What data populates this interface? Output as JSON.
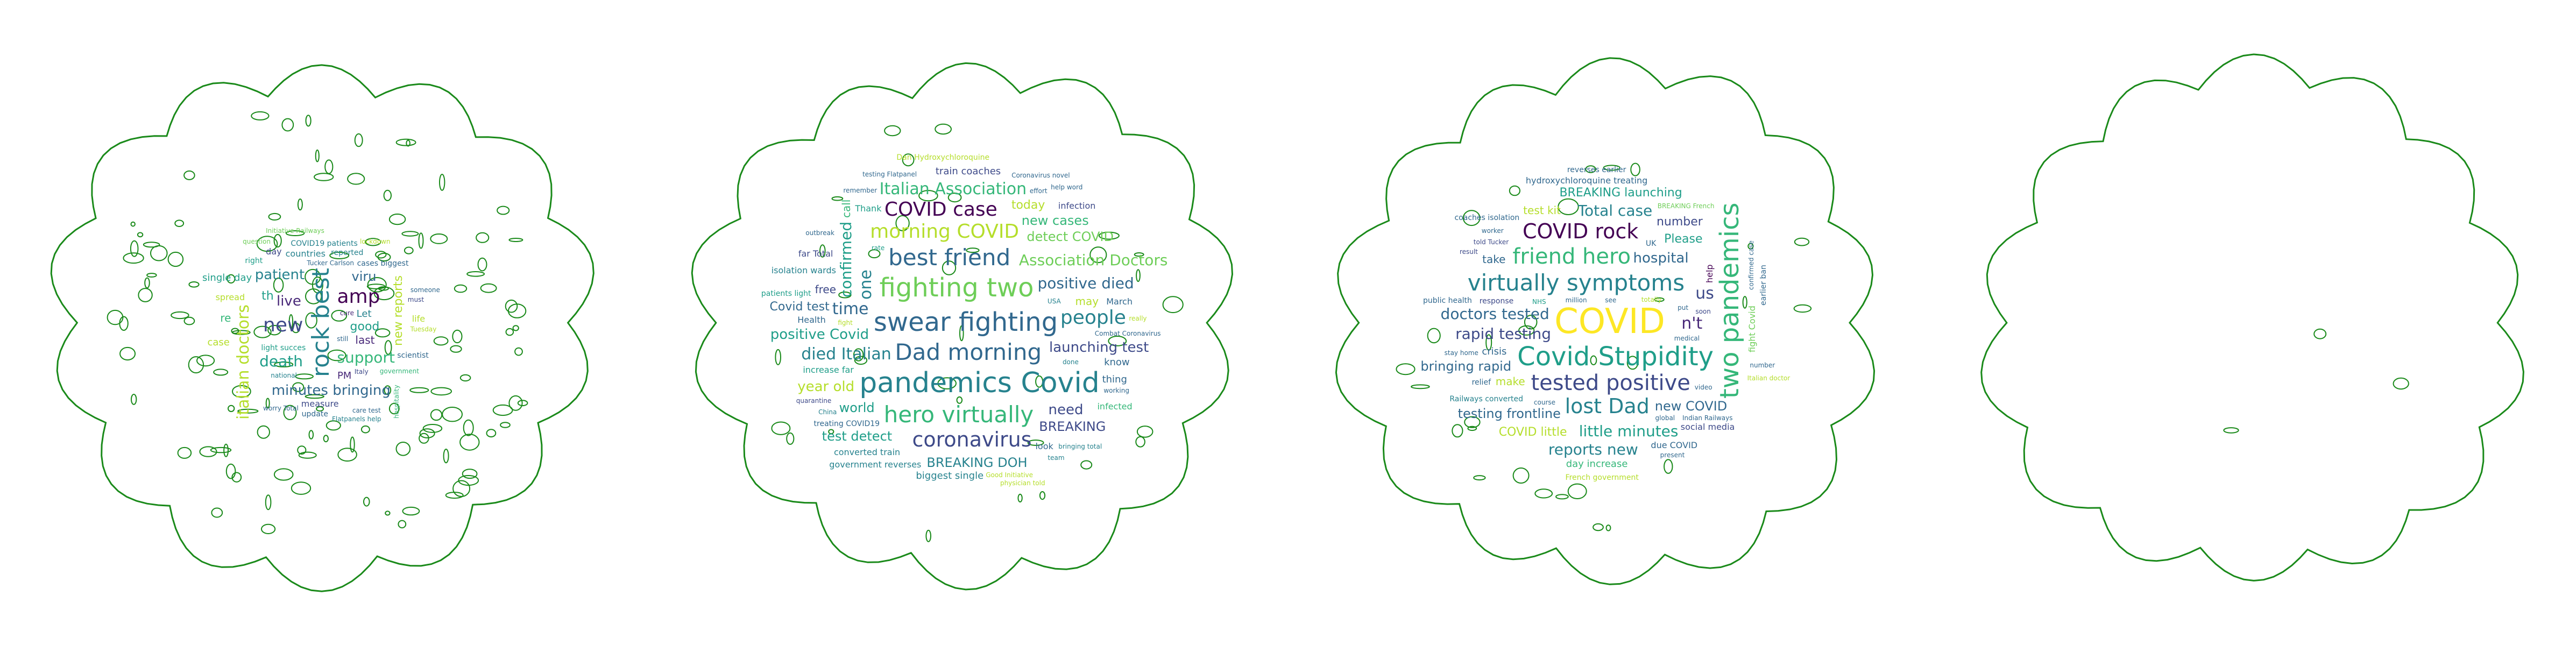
{
  "palette": {
    "outline": "#1a8a1a",
    "viridis": [
      "#440154",
      "#482878",
      "#3e4a89",
      "#31688e",
      "#26828e",
      "#1f9e89",
      "#35b779",
      "#6ece58",
      "#b5de2b",
      "#fde725"
    ]
  },
  "clouds": [
    {
      "words": [
        {
          "text": "rock best",
          "c": 4,
          "s": 44,
          "v": true
        },
        {
          "text": "amp",
          "c": 0,
          "s": 36
        },
        {
          "text": "new",
          "c": 2,
          "s": 36
        },
        {
          "text": "live",
          "c": 1,
          "s": 26
        },
        {
          "text": "minutes bringing",
          "c": 3,
          "s": 26
        },
        {
          "text": "good",
          "c": 5,
          "s": 22
        },
        {
          "text": "support",
          "c": 6,
          "s": 28
        },
        {
          "text": "death",
          "c": 5,
          "s": 28
        },
        {
          "text": "patient",
          "c": 4,
          "s": 26
        },
        {
          "text": "italian doctors",
          "c": 8,
          "s": 30,
          "v": true
        },
        {
          "text": "new reports",
          "c": 8,
          "s": 22,
          "v": true
        },
        {
          "text": "viru",
          "c": 3,
          "s": 24
        },
        {
          "text": "last",
          "c": 1,
          "s": 20
        },
        {
          "text": "th",
          "c": 5,
          "s": 22
        },
        {
          "text": "Let",
          "c": 4,
          "s": 18
        },
        {
          "text": "countries",
          "c": 4,
          "s": 16
        },
        {
          "text": "light succes",
          "c": 5,
          "s": 14
        },
        {
          "text": "COVID19 patients",
          "c": 4,
          "s": 14
        },
        {
          "text": "cases biggest",
          "c": 3,
          "s": 14
        },
        {
          "text": "Italy",
          "c": 2,
          "s": 12
        },
        {
          "text": "day",
          "c": 2,
          "s": 16
        },
        {
          "text": "measure",
          "c": 2,
          "s": 16
        },
        {
          "text": "single day",
          "c": 5,
          "s": 18
        },
        {
          "text": "PM",
          "c": 1,
          "s": 18
        },
        {
          "text": "Tucker Carlson",
          "c": 3,
          "s": 12
        },
        {
          "text": "government",
          "c": 6,
          "s": 12
        },
        {
          "text": "scientist",
          "c": 3,
          "s": 14
        },
        {
          "text": "national",
          "c": 4,
          "s": 12
        },
        {
          "text": "reported",
          "c": 4,
          "s": 14
        },
        {
          "text": "spread",
          "c": 8,
          "s": 16
        },
        {
          "text": "update",
          "c": 3,
          "s": 14
        },
        {
          "text": "life",
          "c": 8,
          "s": 16
        },
        {
          "text": "Initiative Railways",
          "c": 7,
          "s": 12
        },
        {
          "text": "care test",
          "c": 3,
          "s": 12
        },
        {
          "text": "case",
          "c": 8,
          "s": 18
        },
        {
          "text": "re",
          "c": 6,
          "s": 20
        },
        {
          "text": "must",
          "c": 2,
          "s": 12
        },
        {
          "text": "right",
          "c": 5,
          "s": 14
        },
        {
          "text": "still",
          "c": 3,
          "s": 12
        },
        {
          "text": "lockdown",
          "c": 8,
          "s": 12
        },
        {
          "text": "question",
          "c": 7,
          "s": 12
        },
        {
          "text": "Flatpanels help",
          "c": 4,
          "s": 12
        },
        {
          "text": "worry Total",
          "c": 3,
          "s": 12
        },
        {
          "text": "cure",
          "c": 1,
          "s": 12
        },
        {
          "text": "Tuesday",
          "c": 8,
          "s": 12
        },
        {
          "text": "someone",
          "c": 3,
          "s": 12
        },
        {
          "text": "hospitality",
          "c": 6,
          "s": 12,
          "v": true
        }
      ]
    },
    {
      "words": [
        {
          "text": "swear fighting",
          "c": 3,
          "s": 48
        },
        {
          "text": "Dad morning",
          "c": 3,
          "s": 42
        },
        {
          "text": "fighting two",
          "c": 7,
          "s": 48
        },
        {
          "text": "pandemics Covid",
          "c": 4,
          "s": 52
        },
        {
          "text": "best friend",
          "c": 3,
          "s": 42
        },
        {
          "text": "hero virtually",
          "c": 6,
          "s": 42
        },
        {
          "text": "morning COVID",
          "c": 8,
          "s": 36
        },
        {
          "text": "COVID case",
          "c": 0,
          "s": 36
        },
        {
          "text": "coronavirus",
          "c": 2,
          "s": 38
        },
        {
          "text": "Italian Association",
          "c": 6,
          "s": 30
        },
        {
          "text": "died Italian",
          "c": 4,
          "s": 30
        },
        {
          "text": "Association Doctors",
          "c": 7,
          "s": 28
        },
        {
          "text": "positive died",
          "c": 3,
          "s": 28
        },
        {
          "text": "launching test",
          "c": 2,
          "s": 26
        },
        {
          "text": "time",
          "c": 3,
          "s": 30
        },
        {
          "text": "people",
          "c": 4,
          "s": 36
        },
        {
          "text": "one",
          "c": 4,
          "s": 30,
          "v": true
        },
        {
          "text": "confirmed",
          "c": 5,
          "s": 28,
          "v": true
        },
        {
          "text": "positive Covid",
          "c": 5,
          "s": 26
        },
        {
          "text": "detect COVID",
          "c": 7,
          "s": 24
        },
        {
          "text": "new cases",
          "c": 6,
          "s": 24
        },
        {
          "text": "BREAKING DOH",
          "c": 4,
          "s": 24
        },
        {
          "text": "need",
          "c": 2,
          "s": 26
        },
        {
          "text": "BREAKING",
          "c": 2,
          "s": 24
        },
        {
          "text": "test detect",
          "c": 5,
          "s": 24
        },
        {
          "text": "world",
          "c": 5,
          "s": 24
        },
        {
          "text": "today",
          "c": 8,
          "s": 22
        },
        {
          "text": "year old",
          "c": 8,
          "s": 26
        },
        {
          "text": "may",
          "c": 8,
          "s": 20
        },
        {
          "text": "Covid test",
          "c": 3,
          "s": 22
        },
        {
          "text": "free",
          "c": 2,
          "s": 20
        },
        {
          "text": "know",
          "c": 3,
          "s": 18
        },
        {
          "text": "look",
          "c": 3,
          "s": 16
        },
        {
          "text": "train coaches",
          "c": 2,
          "s": 18
        },
        {
          "text": "biggest single",
          "c": 4,
          "s": 18
        },
        {
          "text": "thing",
          "c": 3,
          "s": 18
        },
        {
          "text": "converted train",
          "c": 4,
          "s": 16
        },
        {
          "text": "Thank",
          "c": 5,
          "s": 16
        },
        {
          "text": "March",
          "c": 3,
          "s": 16
        },
        {
          "text": "increase far",
          "c": 5,
          "s": 16
        },
        {
          "text": "Combat Coronavirus",
          "c": 3,
          "s": 12
        },
        {
          "text": "Dan Hydroxychloroquine",
          "c": 8,
          "s": 14
        },
        {
          "text": "isolation wards",
          "c": 4,
          "s": 16
        },
        {
          "text": "treating COVID19",
          "c": 3,
          "s": 14
        },
        {
          "text": "government reverses",
          "c": 4,
          "s": 16
        },
        {
          "text": "far Total",
          "c": 2,
          "s": 16
        },
        {
          "text": "infection",
          "c": 2,
          "s": 16
        },
        {
          "text": "Health",
          "c": 3,
          "s": 16
        },
        {
          "text": "infected",
          "c": 6,
          "s": 16
        },
        {
          "text": "call",
          "c": 6,
          "s": 20,
          "v": true
        },
        {
          "text": "done",
          "c": 4,
          "s": 12
        },
        {
          "text": "patients light",
          "c": 5,
          "s": 14
        },
        {
          "text": "Coronavirus novel",
          "c": 3,
          "s": 12
        },
        {
          "text": "effort",
          "c": 3,
          "s": 12
        },
        {
          "text": "bringing total",
          "c": 4,
          "s": 12
        },
        {
          "text": "quarantine",
          "c": 2,
          "s": 12
        },
        {
          "text": "testing Flatpanel",
          "c": 3,
          "s": 12
        },
        {
          "text": "help word",
          "c": 3,
          "s": 12
        },
        {
          "text": "outbreak",
          "c": 3,
          "s": 12
        },
        {
          "text": "China",
          "c": 4,
          "s": 12
        },
        {
          "text": "remember",
          "c": 3,
          "s": 12
        },
        {
          "text": "USA",
          "c": 4,
          "s": 12
        },
        {
          "text": "working",
          "c": 3,
          "s": 12
        },
        {
          "text": "really",
          "c": 8,
          "s": 12
        },
        {
          "text": "fight",
          "c": 8,
          "s": 12
        },
        {
          "text": "rate",
          "c": 5,
          "s": 12
        },
        {
          "text": "team",
          "c": 4,
          "s": 12
        },
        {
          "text": "Good Initiative",
          "c": 8,
          "s": 12
        },
        {
          "text": "physician told",
          "c": 8,
          "s": 12
        }
      ]
    },
    {
      "words": [
        {
          "text": "COVID",
          "c": 9,
          "s": 64
        },
        {
          "text": "Covid Stupidity",
          "c": 5,
          "s": 48
        },
        {
          "text": "virtually symptoms",
          "c": 4,
          "s": 42
        },
        {
          "text": "tested positive",
          "c": 2,
          "s": 40
        },
        {
          "text": "two pandemics",
          "c": 6,
          "s": 48,
          "v": true
        },
        {
          "text": "friend hero",
          "c": 6,
          "s": 40
        },
        {
          "text": "lost Dad",
          "c": 4,
          "s": 38
        },
        {
          "text": "COVID rock",
          "c": 0,
          "s": 38
        },
        {
          "text": "rapid testing",
          "c": 2,
          "s": 28
        },
        {
          "text": "doctors tested",
          "c": 3,
          "s": 28
        },
        {
          "text": "little minutes",
          "c": 5,
          "s": 28
        },
        {
          "text": "hospital",
          "c": 3,
          "s": 26
        },
        {
          "text": "Total case",
          "c": 4,
          "s": 28
        },
        {
          "text": "n't",
          "c": 1,
          "s": 30
        },
        {
          "text": "us",
          "c": 2,
          "s": 30
        },
        {
          "text": "reports new",
          "c": 4,
          "s": 28
        },
        {
          "text": "testing frontline",
          "c": 3,
          "s": 24
        },
        {
          "text": "BREAKING launching",
          "c": 5,
          "s": 22
        },
        {
          "text": "bringing rapid",
          "c": 3,
          "s": 24
        },
        {
          "text": "new COVID",
          "c": 3,
          "s": 24
        },
        {
          "text": "COVID little",
          "c": 8,
          "s": 22
        },
        {
          "text": "Please",
          "c": 5,
          "s": 22
        },
        {
          "text": "number",
          "c": 2,
          "s": 22
        },
        {
          "text": "make",
          "c": 8,
          "s": 20
        },
        {
          "text": "take",
          "c": 3,
          "s": 20
        },
        {
          "text": "test kit",
          "c": 8,
          "s": 20
        },
        {
          "text": "crisis",
          "c": 3,
          "s": 18
        },
        {
          "text": "day increase",
          "c": 6,
          "s": 18
        },
        {
          "text": "hydroxychloroquine treating",
          "c": 3,
          "s": 16
        },
        {
          "text": "due COVID",
          "c": 3,
          "s": 16
        },
        {
          "text": "Railways converted",
          "c": 4,
          "s": 14
        },
        {
          "text": "coaches isolation",
          "c": 3,
          "s": 14
        },
        {
          "text": "reverses earlier",
          "c": 3,
          "s": 14
        },
        {
          "text": "French government",
          "c": 8,
          "s": 14
        },
        {
          "text": "public health",
          "c": 3,
          "s": 14
        },
        {
          "text": "social media",
          "c": 2,
          "s": 16
        },
        {
          "text": "relief",
          "c": 3,
          "s": 14
        },
        {
          "text": "response",
          "c": 2,
          "s": 14
        },
        {
          "text": "UK",
          "c": 3,
          "s": 14
        },
        {
          "text": "help",
          "c": 0,
          "s": 16,
          "v": true
        },
        {
          "text": "BREAKING French",
          "c": 7,
          "s": 12
        },
        {
          "text": "fight Covid",
          "c": 7,
          "s": 16,
          "v": true
        },
        {
          "text": "earlier ban",
          "c": 3,
          "s": 14,
          "v": true
        },
        {
          "text": "medical",
          "c": 3,
          "s": 12
        },
        {
          "text": "confirmed case",
          "c": 3,
          "s": 12,
          "v": true
        },
        {
          "text": "told Tucker",
          "c": 2,
          "s": 12
        },
        {
          "text": "video",
          "c": 3,
          "s": 12
        },
        {
          "text": "put",
          "c": 3,
          "s": 12
        },
        {
          "text": "million",
          "c": 3,
          "s": 12
        },
        {
          "text": "Indian Railways",
          "c": 3,
          "s": 12
        },
        {
          "text": "NHS",
          "c": 5,
          "s": 12
        },
        {
          "text": "global",
          "c": 3,
          "s": 12
        },
        {
          "text": "worker",
          "c": 3,
          "s": 12
        },
        {
          "text": "stay home",
          "c": 3,
          "s": 12
        },
        {
          "text": "course",
          "c": 3,
          "s": 12
        },
        {
          "text": "totally",
          "c": 8,
          "s": 12
        },
        {
          "text": "present",
          "c": 3,
          "s": 12
        },
        {
          "text": "number",
          "c": 3,
          "s": 12
        },
        {
          "text": "see",
          "c": 3,
          "s": 12
        },
        {
          "text": "soon",
          "c": 2,
          "s": 12
        },
        {
          "text": "Italian doctor",
          "c": 8,
          "s": 12
        },
        {
          "text": "result",
          "c": 2,
          "s": 12
        }
      ]
    },
    {
      "words": []
    }
  ]
}
